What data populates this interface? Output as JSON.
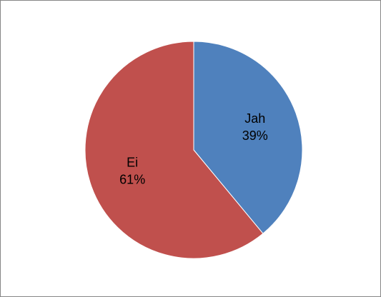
{
  "chart_data": {
    "type": "pie",
    "categories": [
      "Jah",
      "Ei"
    ],
    "values": [
      39,
      61
    ],
    "value_labels": [
      "39%",
      "61%"
    ],
    "colors": [
      "#4f81bd",
      "#c0504d"
    ]
  }
}
